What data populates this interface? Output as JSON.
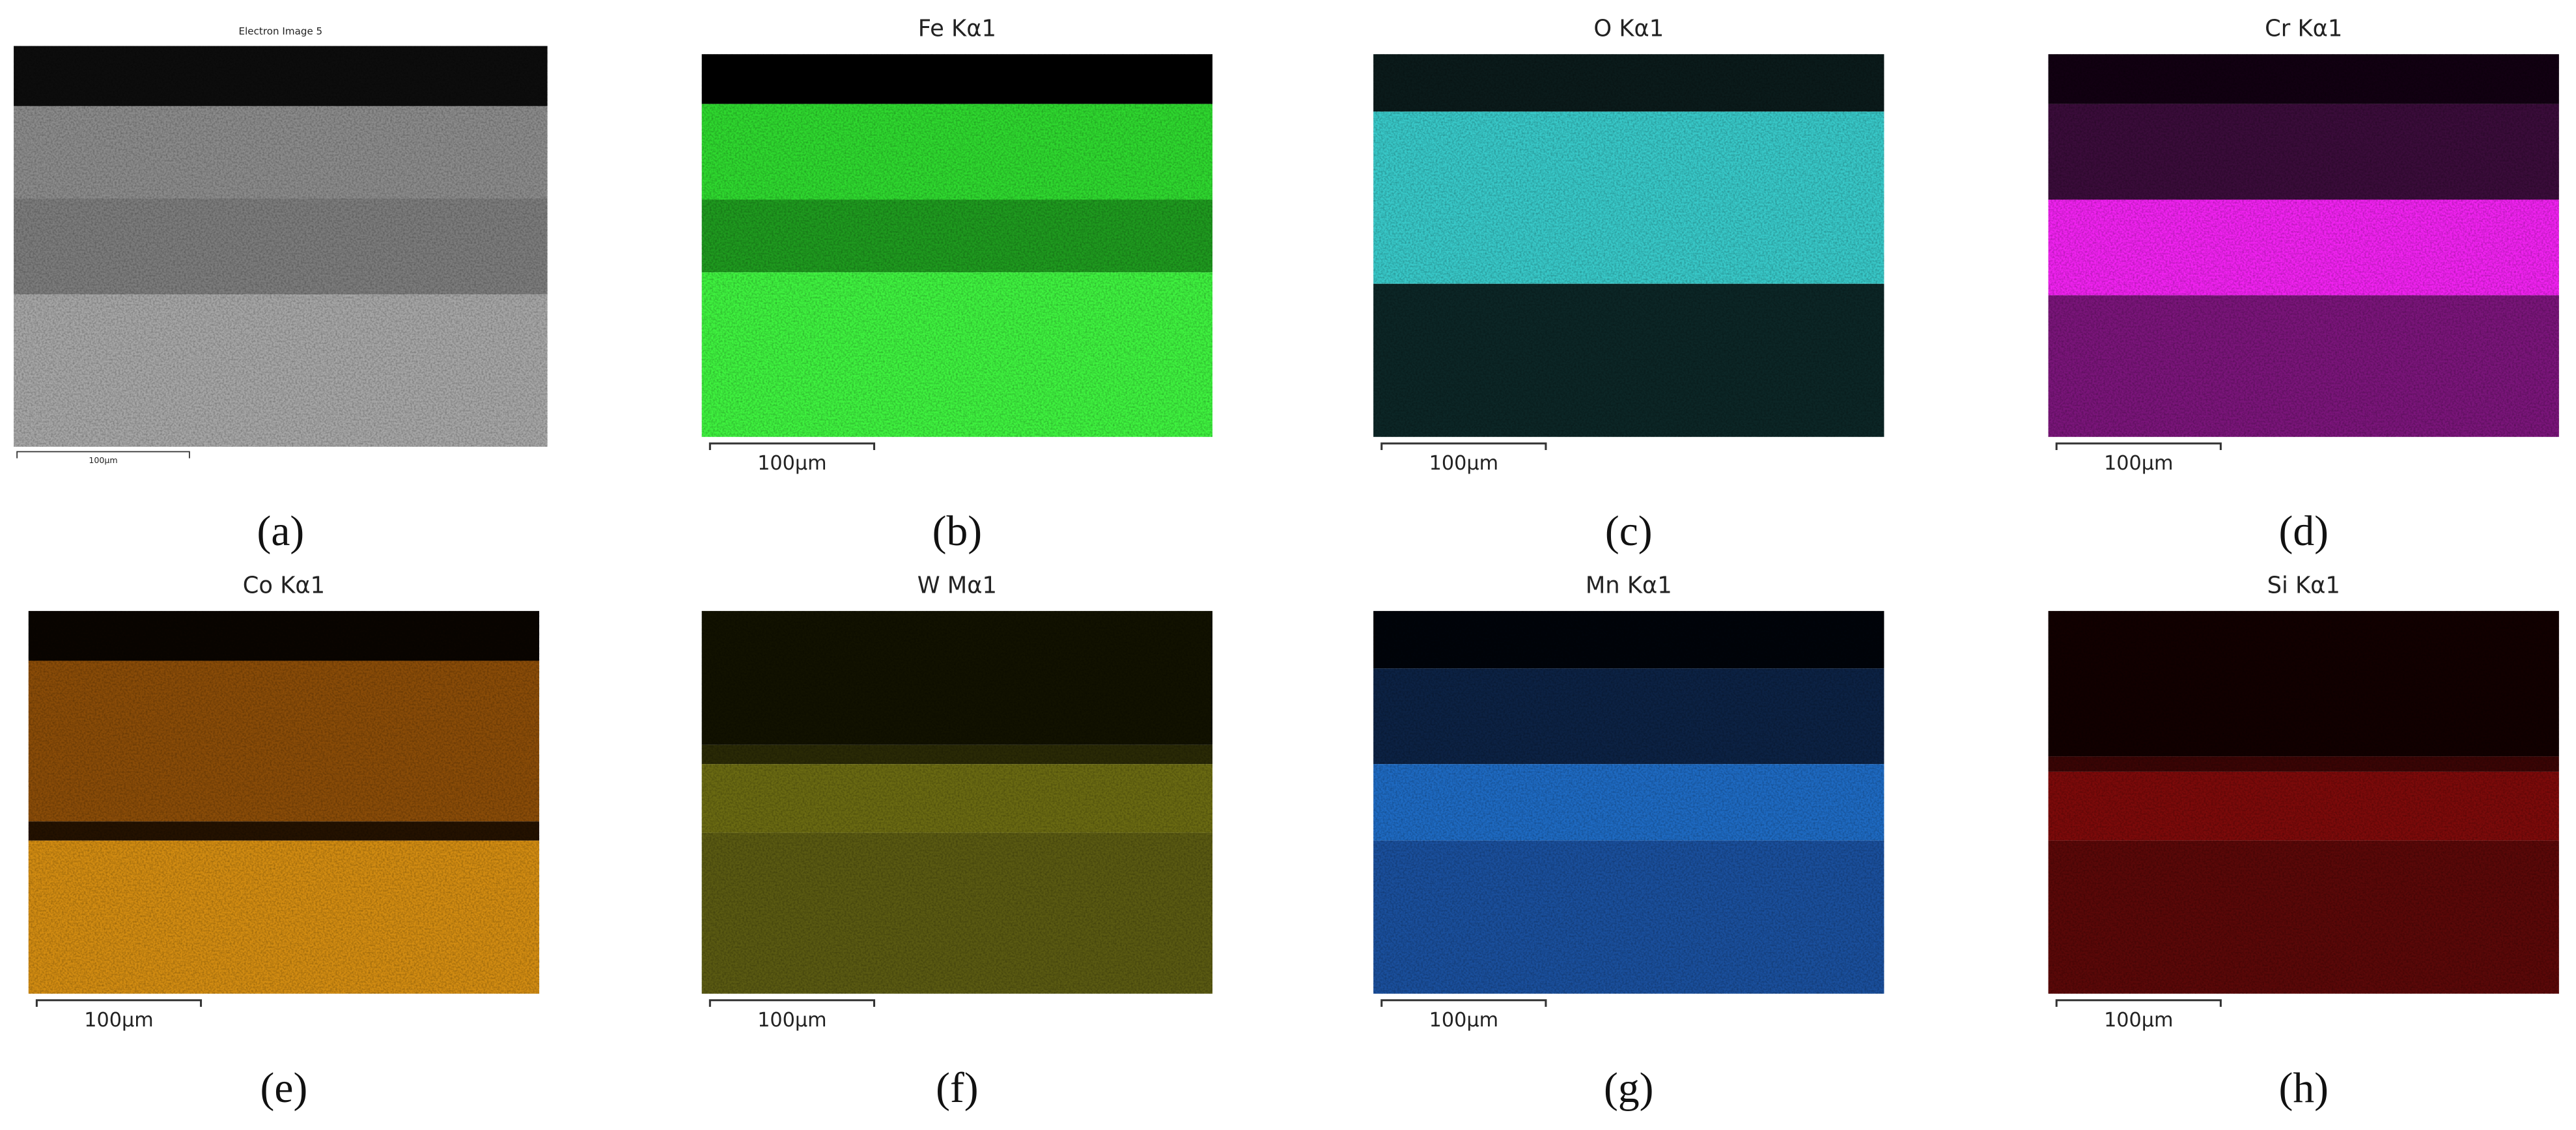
{
  "panels": [
    {
      "title": "Electron Image 5",
      "scale_label": "100µm",
      "caption": "(a)"
    },
    {
      "title": "Fe Kα1",
      "scale_label": "100µm",
      "caption": "(b)"
    },
    {
      "title": "O Kα1",
      "scale_label": "100µm",
      "caption": "(c)"
    },
    {
      "title": "Cr Kα1",
      "scale_label": "100µm",
      "caption": "(d)"
    },
    {
      "title": "Co Kα1",
      "scale_label": "100µm",
      "caption": "(e)"
    },
    {
      "title": "W Mα1",
      "scale_label": "100µm",
      "caption": "(f)"
    },
    {
      "title": "Mn Kα1",
      "scale_label": "100µm",
      "caption": "(g)"
    },
    {
      "title": "Si Kα1",
      "scale_label": "100µm",
      "caption": "(h)"
    }
  ]
}
